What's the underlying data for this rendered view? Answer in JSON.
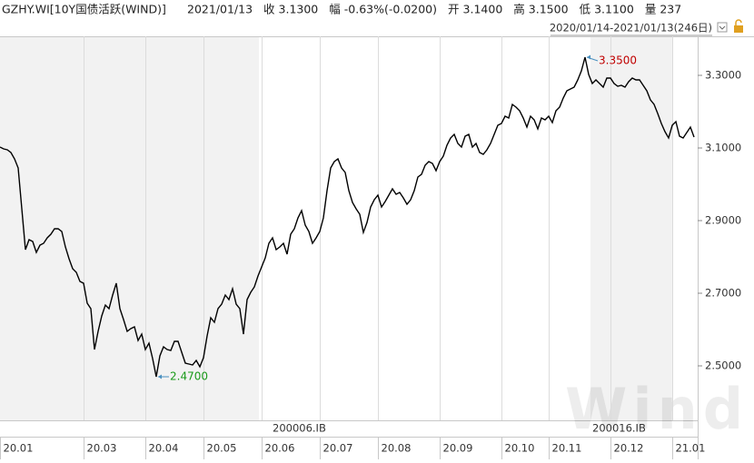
{
  "chart_data": {
    "type": "line",
    "title": "GZHY.WI[10Y国债活跃(WIND)]",
    "date": "2021/01/13",
    "quote": [
      {
        "label": "收",
        "value": "3.1300",
        "color": "#1f5fbf"
      },
      {
        "label": "幅",
        "value": "-0.63%(-0.0200)",
        "color": "#1a9a1a"
      },
      {
        "label": "开",
        "value": "3.1400",
        "color": "#1f5fbf"
      },
      {
        "label": "高",
        "value": "3.1500",
        "color": "#1f5fbf"
      },
      {
        "label": "低",
        "value": "3.1100",
        "color": "#1f5fbf"
      },
      {
        "label": "量",
        "value": "237",
        "color": "#1f5fbf"
      }
    ],
    "range": "2020/01/14-2021/01/13(246日)",
    "contracts": [
      "200006.IB",
      "200016.IB"
    ],
    "watermark": "Wind",
    "high_label": "3.3500",
    "high_color": "#c00000",
    "low_label": "2.4700",
    "low_color": "#1a9a1a",
    "color": "#000000",
    "categories": [
      "20.01",
      null,
      null,
      null,
      null,
      null,
      null,
      null,
      null,
      null,
      null,
      null,
      null,
      null,
      null,
      null,
      null,
      null,
      null,
      null,
      null,
      null,
      null,
      "20.03",
      null,
      null,
      null,
      null,
      null,
      null,
      null,
      null,
      null,
      null,
      null,
      null,
      null,
      null,
      null,
      null,
      "20.04",
      null,
      null,
      null,
      null,
      null,
      null,
      null,
      null,
      null,
      null,
      null,
      null,
      null,
      null,
      null,
      "20.05",
      null,
      null,
      null,
      null,
      null,
      null,
      null,
      null,
      null,
      null,
      null,
      null,
      null,
      null,
      null,
      "20.06",
      null,
      null,
      null,
      null,
      null,
      null,
      null,
      null,
      null,
      null,
      null,
      null,
      null,
      null,
      null,
      "20.07",
      null,
      null,
      null,
      null,
      null,
      null,
      null,
      null,
      null,
      null,
      null,
      null,
      null,
      null,
      null,
      "20.08",
      null,
      null,
      null,
      null,
      null,
      null,
      null,
      null,
      null,
      null,
      null,
      null,
      null,
      null,
      null,
      null,
      "20.09",
      null,
      null,
      null,
      null,
      null,
      null,
      null,
      null,
      null,
      null,
      null,
      null,
      null,
      null,
      null,
      null,
      "20.10",
      null,
      null,
      null,
      null,
      null,
      null,
      null,
      null,
      null,
      null,
      null,
      null,
      "20.11",
      null,
      null,
      null,
      null,
      null,
      null,
      null,
      null,
      null,
      null,
      null,
      null,
      null,
      null,
      null,
      null,
      "20.12",
      null,
      null,
      null,
      null,
      null,
      null,
      null,
      null,
      null,
      null,
      null,
      null,
      null,
      null,
      null,
      null,
      "21.01",
      null,
      null,
      null,
      null,
      null,
      null
    ],
    "values": [
      3.1025,
      3.0975,
      3.095,
      3.0875,
      3.07,
      3.045,
      2.9325,
      2.82,
      2.8475,
      2.8425,
      2.8125,
      2.8325,
      2.8375,
      2.8525,
      2.8625,
      2.8775,
      2.8775,
      2.87,
      2.8275,
      2.795,
      2.7675,
      2.7575,
      2.7325,
      2.7275,
      2.6725,
      2.6575,
      2.545,
      2.595,
      2.6375,
      2.6675,
      2.6575,
      2.695,
      2.7275,
      2.6575,
      2.6275,
      2.595,
      2.6025,
      2.6075,
      2.57,
      2.5875,
      2.545,
      2.5625,
      2.52,
      2.47,
      2.5275,
      2.5525,
      2.545,
      2.5425,
      2.5675,
      2.5675,
      2.5375,
      2.5075,
      2.505,
      2.5025,
      2.515,
      2.4975,
      2.5225,
      2.5825,
      2.6325,
      2.62,
      2.6575,
      2.67,
      2.695,
      2.6825,
      2.7125,
      2.67,
      2.6575,
      2.5875,
      2.6825,
      2.7025,
      2.7175,
      2.7475,
      2.7725,
      2.7975,
      2.8375,
      2.8525,
      2.82,
      2.8275,
      2.8375,
      2.8075,
      2.8625,
      2.8775,
      2.9075,
      2.9275,
      2.8875,
      2.87,
      2.8375,
      2.8525,
      2.87,
      2.9075,
      2.9825,
      3.045,
      3.0625,
      3.07,
      3.045,
      3.0325,
      2.9825,
      2.95,
      2.9325,
      2.9175,
      2.8675,
      2.895,
      2.9375,
      2.9575,
      2.97,
      2.9375,
      2.9525,
      2.97,
      2.9875,
      2.9725,
      2.9775,
      2.9625,
      2.945,
      2.9575,
      2.9825,
      3.02,
      3.0275,
      3.0525,
      3.0625,
      3.0575,
      3.0375,
      3.0625,
      3.0775,
      3.1075,
      3.1275,
      3.1375,
      3.1125,
      3.1025,
      3.1325,
      3.1375,
      3.1025,
      3.1125,
      3.0875,
      3.0825,
      3.095,
      3.1125,
      3.1375,
      3.1625,
      3.1675,
      3.1875,
      3.1825,
      3.22,
      3.2125,
      3.2025,
      3.1825,
      3.1575,
      3.1875,
      3.1775,
      3.1525,
      3.1825,
      3.1775,
      3.1875,
      3.17,
      3.2025,
      3.2125,
      3.2375,
      3.2575,
      3.2625,
      3.2675,
      3.2875,
      3.3125,
      3.35,
      3.3025,
      3.2775,
      3.2875,
      3.2775,
      3.2675,
      3.2925,
      3.2925,
      3.2775,
      3.27,
      3.2725,
      3.2675,
      3.2825,
      3.2925,
      3.2875,
      3.2875,
      3.2725,
      3.2575,
      3.2325,
      3.22,
      3.195,
      3.1675,
      3.145,
      3.1275,
      3.1625,
      3.1725,
      3.1325,
      3.1275,
      3.1425,
      3.1575,
      3.13
    ],
    "ylim": [
      2.35,
      3.4075
    ],
    "yticks": [
      {
        "value": 2.5,
        "label": "2.5000"
      },
      {
        "value": 2.7,
        "label": "2.7000"
      },
      {
        "value": 2.9,
        "label": "2.9000"
      },
      {
        "value": 3.1,
        "label": "3.1000"
      },
      {
        "value": 3.3,
        "label": "3.3000"
      }
    ],
    "grid": true
  }
}
